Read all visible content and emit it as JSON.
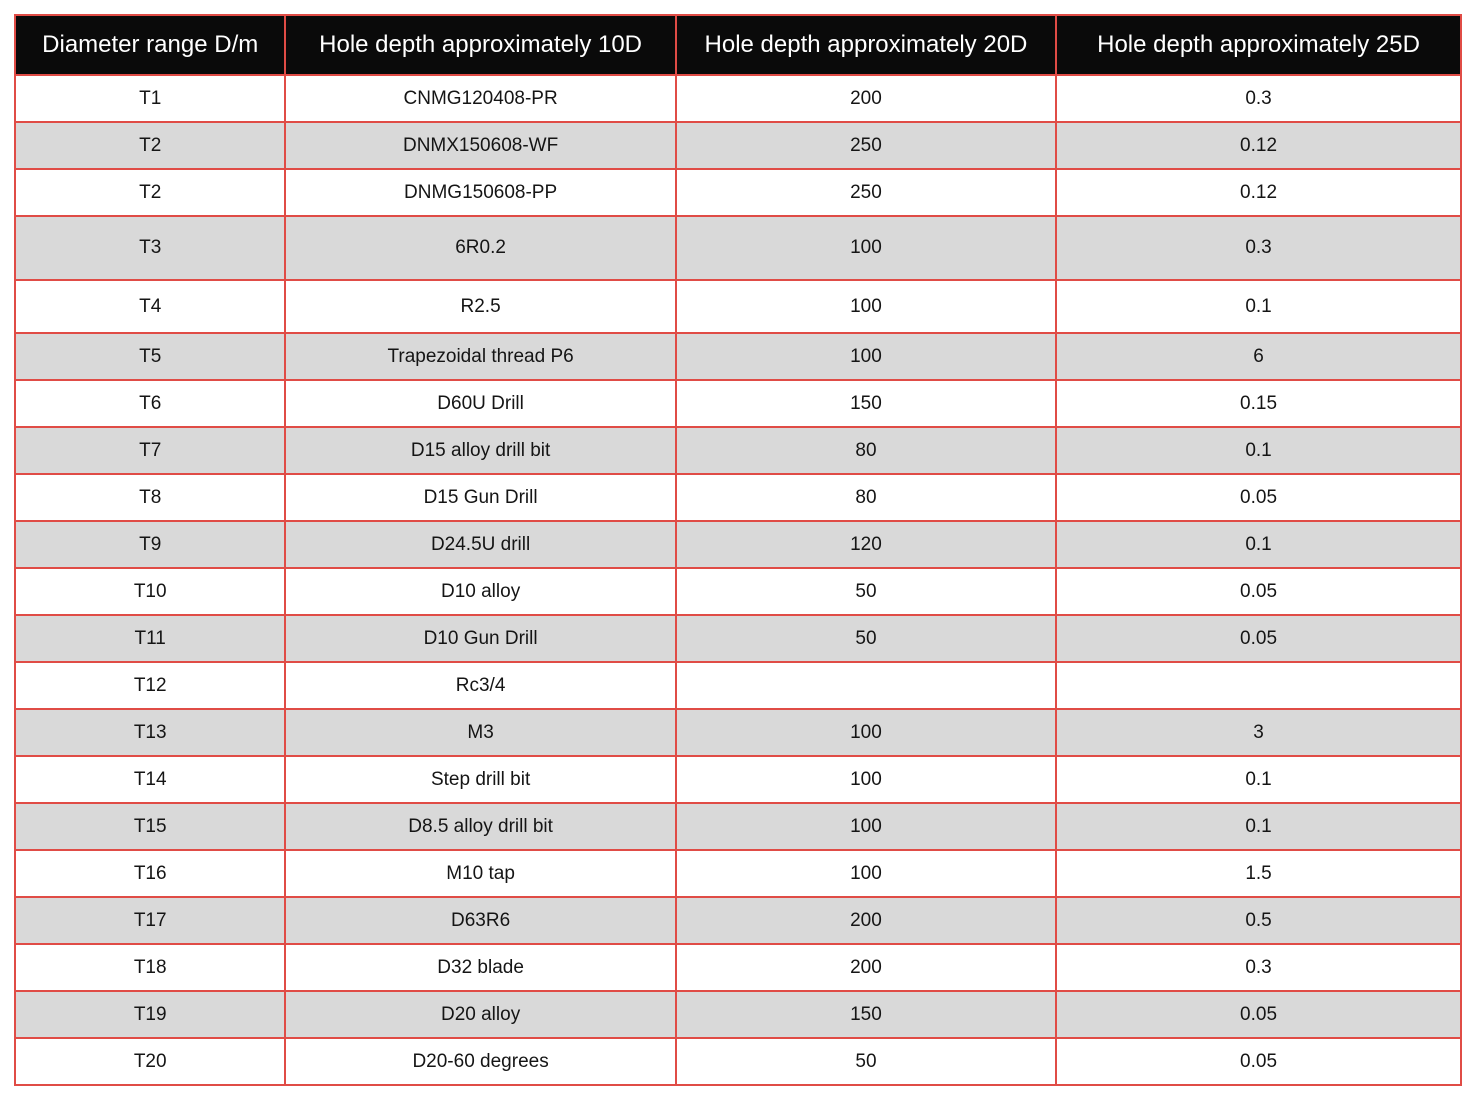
{
  "chart_data": {
    "type": "table",
    "columns": [
      "Diameter range D/m",
      "Hole depth approximately 10D",
      "Hole depth approximately 20D",
      "Hole depth approximately 25D"
    ],
    "rows": [
      [
        "T1",
        "CNMG120408-PR",
        "200",
        "0.3"
      ],
      [
        "T2",
        "DNMX150608-WF",
        "250",
        "0.12"
      ],
      [
        "T2",
        "DNMG150608-PP",
        "250",
        "0.12"
      ],
      [
        "T3",
        "6R0.2",
        "100",
        "0.3"
      ],
      [
        "T4",
        "R2.5",
        "100",
        "0.1"
      ],
      [
        "T5",
        "Trapezoidal thread P6",
        "100",
        "6"
      ],
      [
        "T6",
        "D60U Drill",
        "150",
        "0.15"
      ],
      [
        "T7",
        "D15 alloy drill bit",
        "80",
        "0.1"
      ],
      [
        "T8",
        "D15 Gun Drill",
        "80",
        "0.05"
      ],
      [
        "T9",
        "D24.5U drill",
        "120",
        "0.1"
      ],
      [
        "T10",
        "D10 alloy",
        "50",
        "0.05"
      ],
      [
        "T11",
        "D10 Gun Drill",
        "50",
        "0.05"
      ],
      [
        "T12",
        "Rc3/4",
        "",
        ""
      ],
      [
        "T13",
        "M3",
        "100",
        "3"
      ],
      [
        "T14",
        "Step drill bit",
        "100",
        "0.1"
      ],
      [
        "T15",
        "D8.5 alloy drill bit",
        "100",
        "0.1"
      ],
      [
        "T16",
        "M10 tap",
        "100",
        "1.5"
      ],
      [
        "T17",
        "D63R6",
        "200",
        "0.5"
      ],
      [
        "T18",
        "D32 blade",
        "200",
        "0.3"
      ],
      [
        "T19",
        "D20 alloy",
        "150",
        "0.05"
      ],
      [
        "T20",
        "D20-60 degrees",
        "50",
        "0.05"
      ]
    ],
    "colors": {
      "header_bg": "#0a0a0a",
      "header_text": "#ffffff",
      "row_alt_bg": "#d9d9d9",
      "border": "#e04c46"
    }
  }
}
